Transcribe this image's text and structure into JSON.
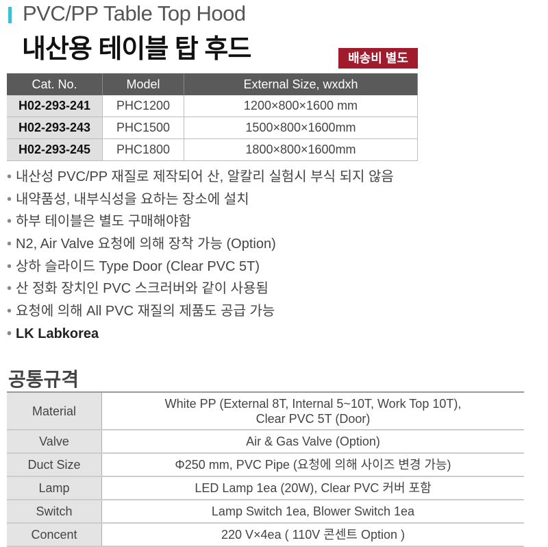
{
  "header": {
    "title_en": "PVC/PP Table Top Hood",
    "title_ko": "내산용 테이블 탑 후드",
    "shipping_badge": "배송비 별도",
    "accent_color": "#3fbfd4",
    "badge_color": "#a01c2c"
  },
  "product_table": {
    "columns": [
      "Cat. No.",
      "Model",
      "External Size, wxdxh"
    ],
    "rows": [
      [
        "H02-293-241",
        "PHC1200",
        "1200×800×1600 mm"
      ],
      [
        "H02-293-243",
        "PHC1500",
        "1500×800×1600mm"
      ],
      [
        "H02-293-245",
        "PHC1800",
        "1800×800×1600mm"
      ]
    ]
  },
  "features": [
    "내산성 PVC/PP 재질로 제작되어 산, 알칼리 실험시 부식 되지 않음",
    "내약품성, 내부식성을 요하는 장소에 설치",
    "하부 테이블은 별도 구매해야함",
    "N2, Air Valve 요청에 의해 장착 가능 (Option)",
    "상하 슬라이드 Type Door (Clear PVC 5T)",
    "산 정화 장치인 PVC 스크러버와 같이 사용됨",
    "요청에 의해 All PVC 재질의 제품도 공급 가능",
    "LK Labkorea"
  ],
  "spec": {
    "title": "공통규격",
    "rows": [
      {
        "label": "Material",
        "value": "White PP (External 8T, Internal 5~10T, Work Top 10T),",
        "value2": "Clear PVC 5T (Door)"
      },
      {
        "label": "Valve",
        "value": "Air & Gas Valve (Option)"
      },
      {
        "label": "Duct Size",
        "value": "Φ250 mm, PVC Pipe (요청에 의해 사이즈 변경 가능)"
      },
      {
        "label": "Lamp",
        "value": "LED Lamp 1ea (20W), Clear PVC 커버 포함"
      },
      {
        "label": "Switch",
        "value": "Lamp Switch 1ea, Blower Switch 1ea"
      },
      {
        "label": "Concent",
        "value": "220 V×4ea ( 110V 콘센트 Option )"
      }
    ]
  }
}
